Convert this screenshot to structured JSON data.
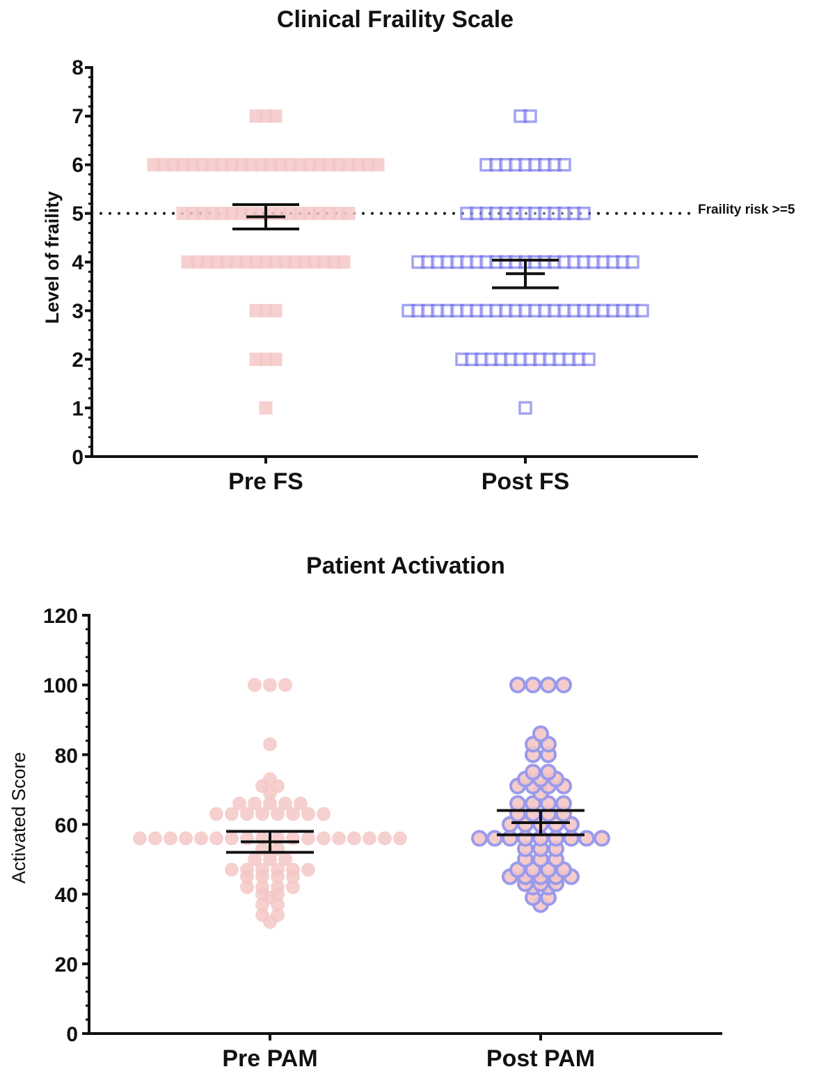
{
  "chart_data": [
    {
      "type": "scatter",
      "title": "Clinical Fraility Scale",
      "xlabel": "",
      "ylabel": "Level of fraility",
      "ylim": [
        0,
        8
      ],
      "yticks": [
        "0",
        "1",
        "2",
        "3",
        "4",
        "5",
        "6",
        "7",
        "8"
      ],
      "categories": [
        "Pre FS",
        "Post FS"
      ],
      "reference_line": {
        "value": 5,
        "label": "Fraility risk >=5"
      },
      "series": [
        {
          "name": "Pre FS",
          "marker": "square",
          "color": "#f4c7c7",
          "counts": {
            "1": 1,
            "2": 3,
            "3": 3,
            "4": 17,
            "5": 18,
            "6": 24,
            "7": 3
          },
          "mean": 4.93,
          "error_low": 4.68,
          "error_high": 5.18
        },
        {
          "name": "Post FS",
          "marker": "open-square",
          "color": "#5a5ae6",
          "counts": {
            "1": 1,
            "2": 14,
            "3": 25,
            "4": 23,
            "5": 13,
            "6": 9,
            "7": 2
          },
          "mean": 3.76,
          "error_low": 3.47,
          "error_high": 4.04
        }
      ]
    },
    {
      "type": "scatter",
      "title": "Patient Activation",
      "xlabel": "",
      "ylabel": "Activated Score",
      "ylim": [
        0,
        120
      ],
      "yticks": [
        "0",
        "20",
        "40",
        "60",
        "80",
        "100",
        "120"
      ],
      "categories": [
        "Pre PAM",
        "Post PAM"
      ],
      "series": [
        {
          "name": "Pre PAM",
          "marker": "circle",
          "color": "#f4c7c7",
          "values": [
            100,
            100,
            100,
            83,
            73,
            71,
            71,
            69,
            66,
            66,
            66,
            66,
            66,
            63,
            63,
            63,
            63,
            63,
            63,
            63,
            63,
            56,
            56,
            56,
            56,
            56,
            56,
            56,
            56,
            56,
            56,
            56,
            56,
            56,
            56,
            56,
            56,
            56,
            56,
            53,
            53,
            50,
            50,
            50,
            47,
            47,
            47,
            47,
            47,
            47,
            45,
            45,
            45,
            45,
            42,
            42,
            42,
            42,
            40,
            40,
            39,
            37,
            37,
            34,
            34,
            32
          ],
          "mean": 55,
          "error_low": 52,
          "error_high": 58
        },
        {
          "name": "Post PAM",
          "marker": "circle",
          "color": "#f4c7c7",
          "edge_color": "#9a9aec",
          "values": [
            100,
            100,
            100,
            100,
            86,
            83,
            83,
            80,
            80,
            75,
            75,
            73,
            73,
            73,
            71,
            71,
            71,
            71,
            69,
            66,
            66,
            66,
            66,
            63,
            63,
            63,
            63,
            60,
            60,
            60,
            60,
            60,
            56,
            56,
            56,
            56,
            56,
            56,
            56,
            56,
            56,
            53,
            53,
            53,
            50,
            50,
            50,
            47,
            47,
            47,
            47,
            45,
            45,
            45,
            45,
            45,
            43,
            43,
            43,
            42,
            42,
            39,
            39,
            37
          ],
          "mean": 60.5,
          "error_low": 57,
          "error_high": 64
        }
      ]
    }
  ]
}
